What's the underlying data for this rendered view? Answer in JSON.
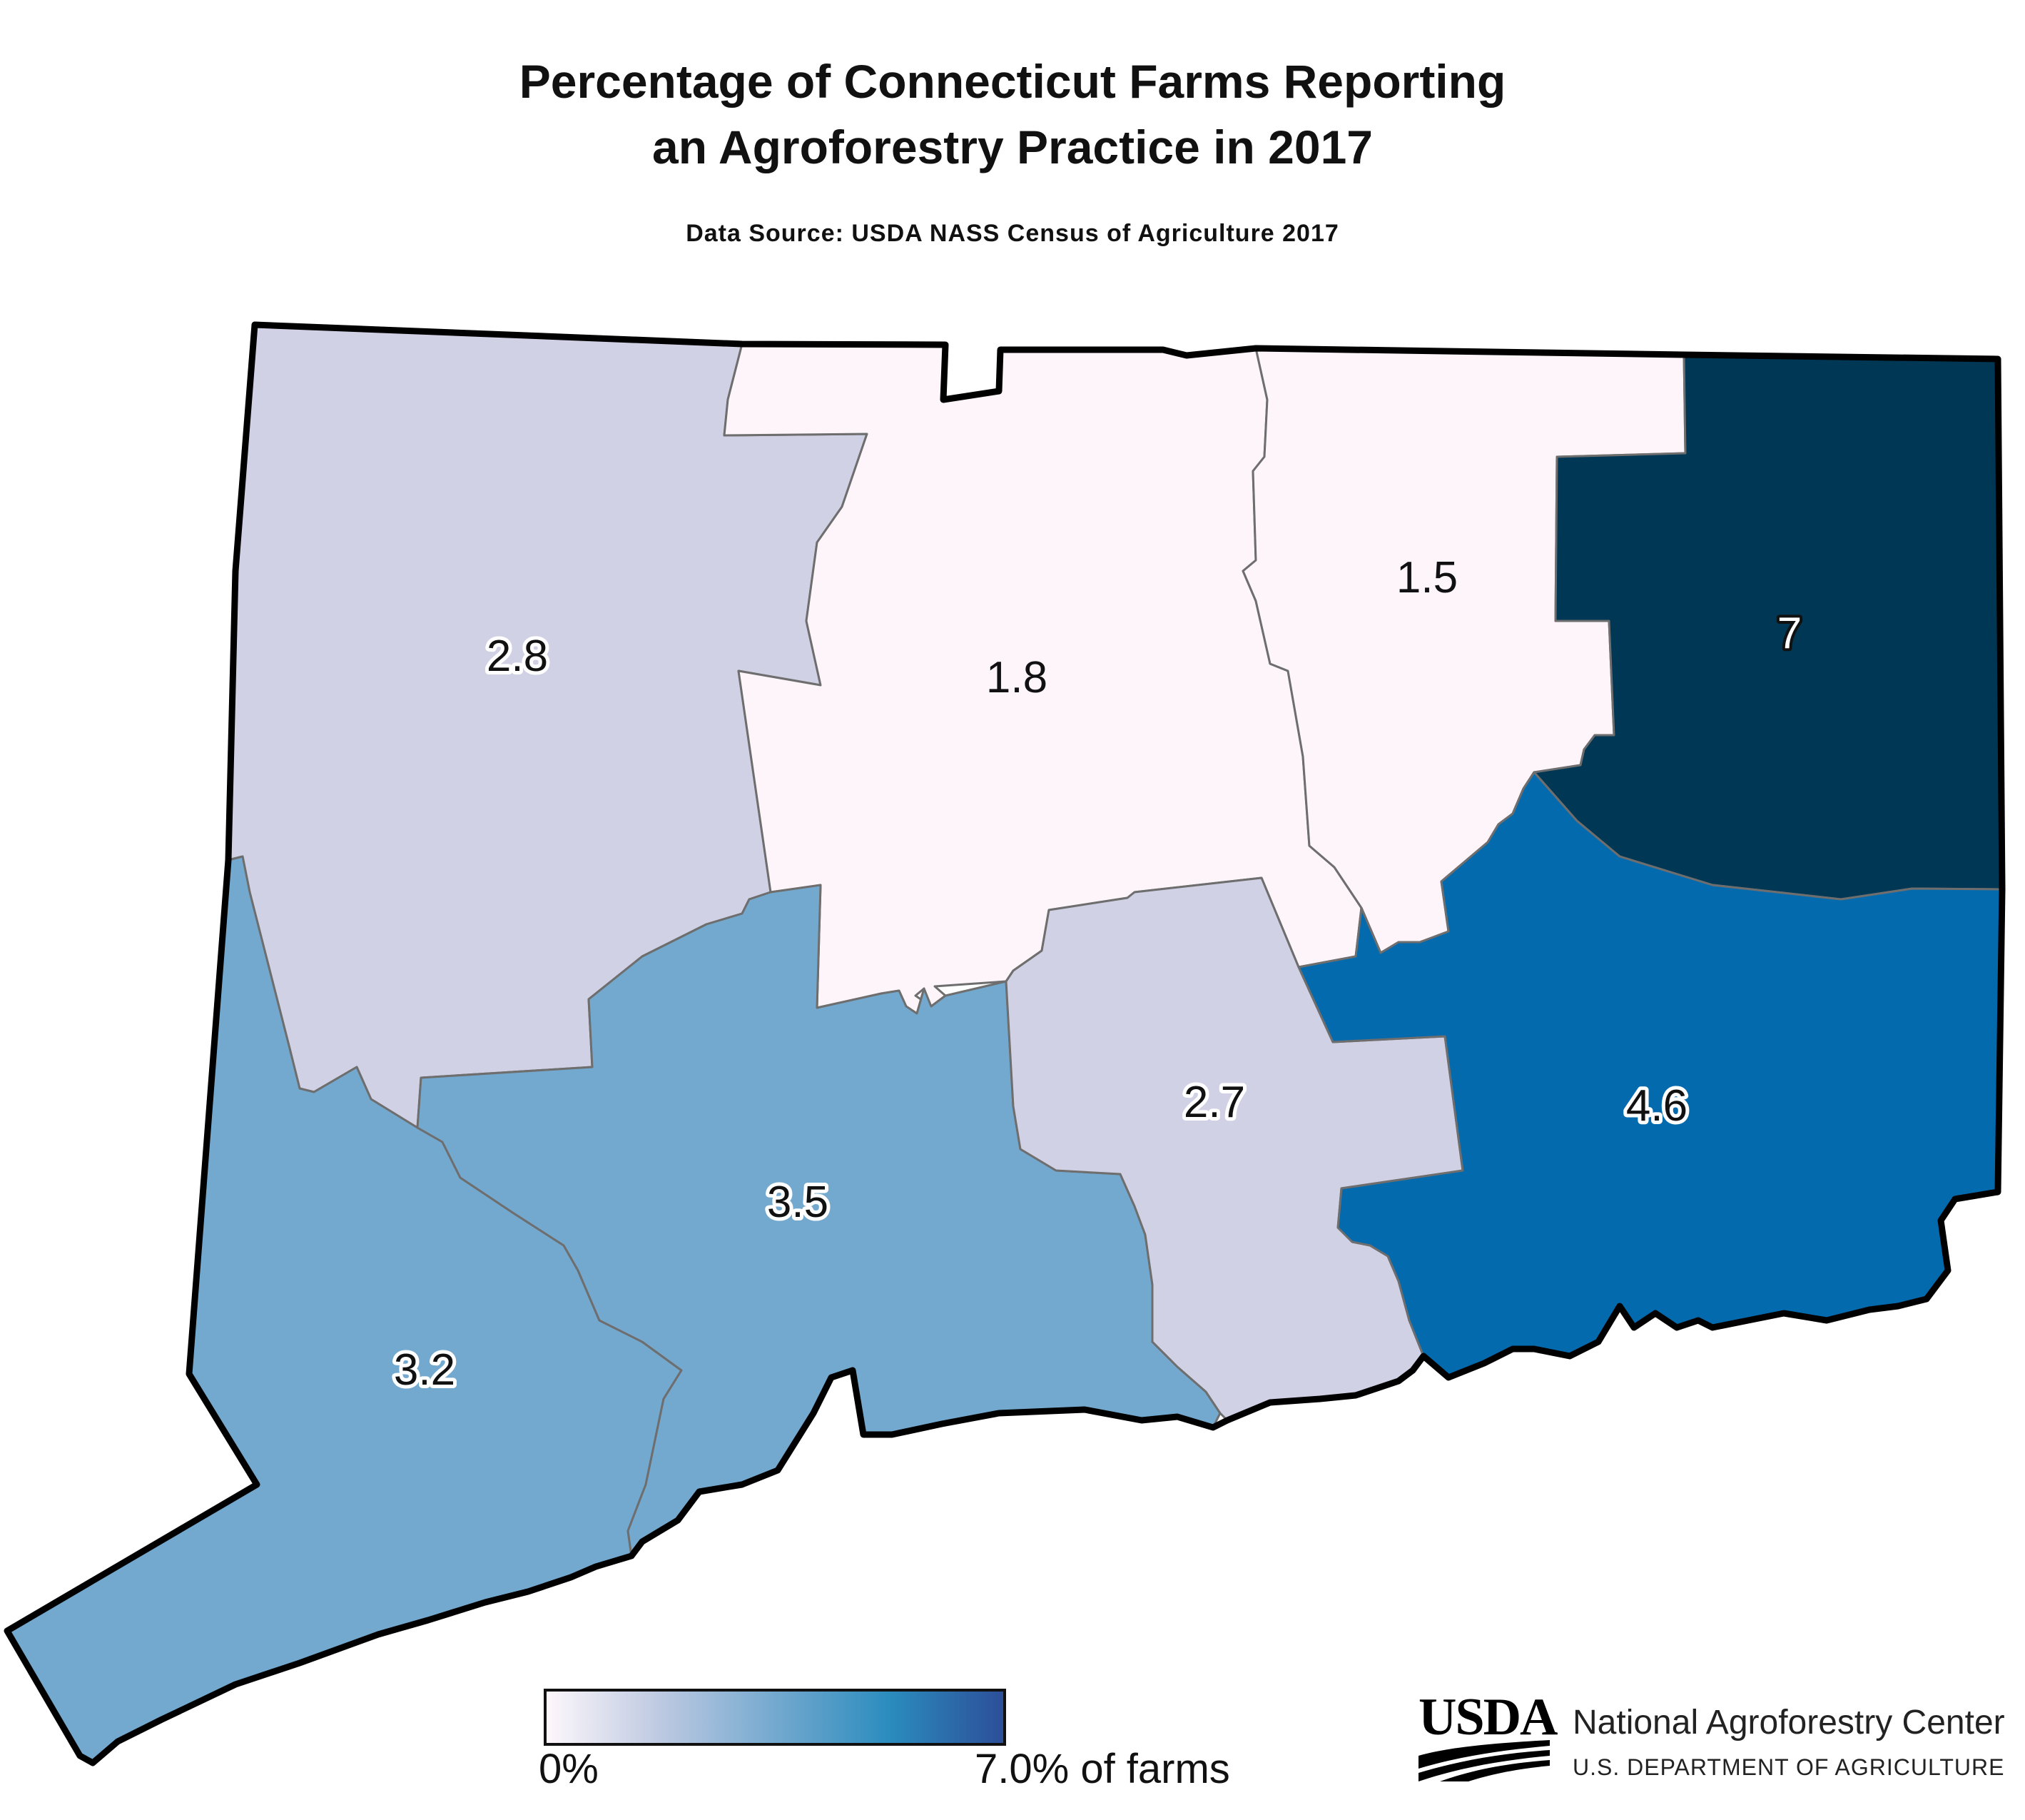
{
  "title_line1": "Percentage of Connecticut Farms Reporting",
  "title_line2": "an Agroforestry Practice in 2017",
  "subtitle": "Data Source: USDA NASS Census of Agriculture 2017",
  "colors": {
    "county_fills": {
      "c_2_8": "#d1d1e6",
      "c_1_8": "#fef5fa",
      "c_1_5": "#fef5fa",
      "c_7": "#003754",
      "c_3_2": "#74a9cf",
      "c_3_5": "#74a9cf",
      "c_2_7": "#d1d1e6",
      "c_4_6": "#046aae"
    },
    "legend_gradient": [
      "#fdf7fb",
      "#bdc9e1",
      "#74a9cf",
      "#2b8cbe",
      "#2c4f99"
    ]
  },
  "counties": [
    {
      "id": "c_2_8",
      "label": "2.8",
      "value": 2.8
    },
    {
      "id": "c_1_8",
      "label": "1.8",
      "value": 1.8
    },
    {
      "id": "c_1_5",
      "label": "1.5",
      "value": 1.5
    },
    {
      "id": "c_7",
      "label": "7",
      "value": 7.0
    },
    {
      "id": "c_3_2",
      "label": "3.2",
      "value": 3.2
    },
    {
      "id": "c_3_5",
      "label": "3.5",
      "value": 3.5
    },
    {
      "id": "c_2_7",
      "label": "2.7",
      "value": 2.7
    },
    {
      "id": "c_4_6",
      "label": "4.6",
      "value": 4.6
    }
  ],
  "legend": {
    "min_label": "0%",
    "max_label": "7.0% of farms",
    "min": 0,
    "max": 7.0
  },
  "logo": {
    "word": "USDA",
    "name": "National Agroforestry Center",
    "department": "U.S. DEPARTMENT OF AGRICULTURE"
  }
}
